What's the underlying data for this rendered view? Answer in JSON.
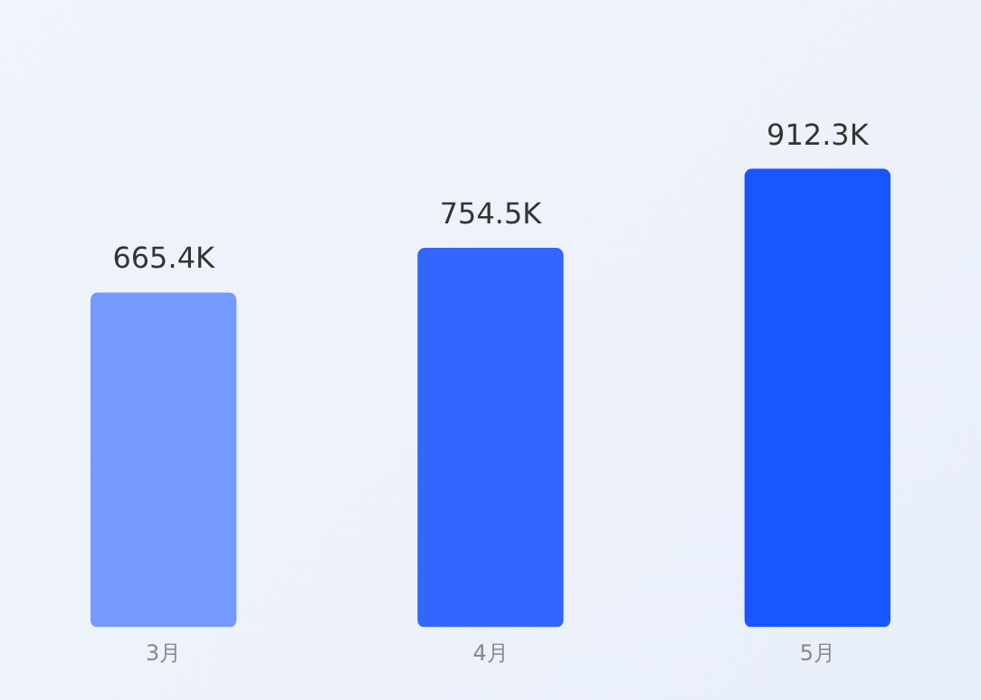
{
  "chart_data": {
    "type": "bar",
    "categories": [
      "3月",
      "4月",
      "5月"
    ],
    "values": [
      665400,
      754500,
      912300
    ],
    "colors": [
      "#7499ff",
      "#3366ff",
      "#1a56ff"
    ],
    "value_labels": [
      "665.4K",
      "754.5K",
      "912.3K"
    ],
    "grid": false,
    "legend": false,
    "tick_labels": "x"
  }
}
